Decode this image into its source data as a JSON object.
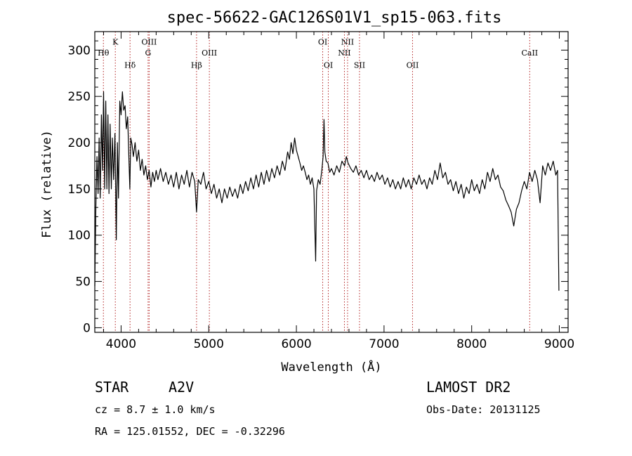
{
  "chart_data": {
    "type": "line",
    "title": "spec-56622-GAC126S01V1_sp15-063.fits",
    "xlabel": "Wavelength (Å)",
    "ylabel": "Flux (relative)",
    "xlim": [
      3700,
      9100
    ],
    "ylim": [
      -5,
      320
    ],
    "xticks": [
      4000,
      5000,
      6000,
      7000,
      8000,
      9000
    ],
    "yticks": [
      0,
      50,
      100,
      150,
      200,
      250,
      300
    ],
    "series": [
      {
        "values": [
          [
            3700,
            45
          ],
          [
            3712,
            130
          ],
          [
            3725,
            185
          ],
          [
            3738,
            145
          ],
          [
            3750,
            205
          ],
          [
            3762,
            140
          ],
          [
            3775,
            230
          ],
          [
            3788,
            170
          ],
          [
            3800,
            255
          ],
          [
            3812,
            150
          ],
          [
            3825,
            245
          ],
          [
            3838,
            150
          ],
          [
            3850,
            230
          ],
          [
            3862,
            145
          ],
          [
            3875,
            220
          ],
          [
            3888,
            150
          ],
          [
            3900,
            205
          ],
          [
            3915,
            160
          ],
          [
            3930,
            210
          ],
          [
            3945,
            95
          ],
          [
            3958,
            200
          ],
          [
            3970,
            140
          ],
          [
            3985,
            245
          ],
          [
            4000,
            230
          ],
          [
            4015,
            255
          ],
          [
            4030,
            235
          ],
          [
            4045,
            240
          ],
          [
            4060,
            215
          ],
          [
            4075,
            228
          ],
          [
            4090,
            180
          ],
          [
            4100,
            150
          ],
          [
            4110,
            205
          ],
          [
            4125,
            198
          ],
          [
            4140,
            185
          ],
          [
            4160,
            200
          ],
          [
            4180,
            180
          ],
          [
            4200,
            192
          ],
          [
            4220,
            170
          ],
          [
            4240,
            182
          ],
          [
            4260,
            165
          ],
          [
            4280,
            175
          ],
          [
            4300,
            160
          ],
          [
            4320,
            170
          ],
          [
            4340,
            152
          ],
          [
            4360,
            168
          ],
          [
            4380,
            158
          ],
          [
            4400,
            170
          ],
          [
            4420,
            160
          ],
          [
            4450,
            172
          ],
          [
            4480,
            158
          ],
          [
            4510,
            168
          ],
          [
            4540,
            155
          ],
          [
            4570,
            165
          ],
          [
            4600,
            152
          ],
          [
            4630,
            168
          ],
          [
            4660,
            150
          ],
          [
            4690,
            165
          ],
          [
            4720,
            155
          ],
          [
            4750,
            170
          ],
          [
            4780,
            152
          ],
          [
            4810,
            168
          ],
          [
            4840,
            158
          ],
          [
            4861,
            125
          ],
          [
            4880,
            160
          ],
          [
            4910,
            155
          ],
          [
            4940,
            168
          ],
          [
            4970,
            150
          ],
          [
            5000,
            158
          ],
          [
            5030,
            145
          ],
          [
            5060,
            155
          ],
          [
            5090,
            140
          ],
          [
            5120,
            150
          ],
          [
            5150,
            135
          ],
          [
            5180,
            150
          ],
          [
            5210,
            140
          ],
          [
            5240,
            152
          ],
          [
            5270,
            142
          ],
          [
            5300,
            150
          ],
          [
            5330,
            140
          ],
          [
            5360,
            155
          ],
          [
            5390,
            145
          ],
          [
            5420,
            158
          ],
          [
            5450,
            148
          ],
          [
            5480,
            162
          ],
          [
            5510,
            150
          ],
          [
            5540,
            165
          ],
          [
            5570,
            152
          ],
          [
            5600,
            168
          ],
          [
            5630,
            155
          ],
          [
            5660,
            170
          ],
          [
            5690,
            158
          ],
          [
            5720,
            172
          ],
          [
            5750,
            162
          ],
          [
            5780,
            175
          ],
          [
            5810,
            165
          ],
          [
            5840,
            180
          ],
          [
            5870,
            170
          ],
          [
            5900,
            190
          ],
          [
            5920,
            182
          ],
          [
            5940,
            200
          ],
          [
            5960,
            188
          ],
          [
            5980,
            205
          ],
          [
            6000,
            192
          ],
          [
            6020,
            185
          ],
          [
            6040,
            178
          ],
          [
            6060,
            170
          ],
          [
            6080,
            175
          ],
          [
            6100,
            168
          ],
          [
            6120,
            160
          ],
          [
            6140,
            165
          ],
          [
            6160,
            155
          ],
          [
            6180,
            162
          ],
          [
            6200,
            150
          ],
          [
            6220,
            72
          ],
          [
            6230,
            148
          ],
          [
            6250,
            160
          ],
          [
            6270,
            155
          ],
          [
            6290,
            170
          ],
          [
            6305,
            185
          ],
          [
            6315,
            225
          ],
          [
            6325,
            190
          ],
          [
            6340,
            180
          ],
          [
            6360,
            178
          ],
          [
            6380,
            168
          ],
          [
            6400,
            172
          ],
          [
            6430,
            165
          ],
          [
            6460,
            175
          ],
          [
            6490,
            168
          ],
          [
            6520,
            180
          ],
          [
            6550,
            175
          ],
          [
            6570,
            185
          ],
          [
            6590,
            178
          ],
          [
            6620,
            172
          ],
          [
            6650,
            168
          ],
          [
            6680,
            175
          ],
          [
            6710,
            165
          ],
          [
            6740,
            170
          ],
          [
            6770,
            162
          ],
          [
            6800,
            170
          ],
          [
            6830,
            160
          ],
          [
            6860,
            165
          ],
          [
            6890,
            158
          ],
          [
            6920,
            168
          ],
          [
            6950,
            160
          ],
          [
            6980,
            165
          ],
          [
            7010,
            155
          ],
          [
            7040,
            162
          ],
          [
            7070,
            152
          ],
          [
            7100,
            160
          ],
          [
            7130,
            150
          ],
          [
            7160,
            158
          ],
          [
            7190,
            150
          ],
          [
            7220,
            162
          ],
          [
            7250,
            152
          ],
          [
            7280,
            160
          ],
          [
            7310,
            150
          ],
          [
            7340,
            162
          ],
          [
            7370,
            155
          ],
          [
            7400,
            165
          ],
          [
            7430,
            155
          ],
          [
            7460,
            160
          ],
          [
            7490,
            150
          ],
          [
            7520,
            162
          ],
          [
            7550,
            155
          ],
          [
            7580,
            170
          ],
          [
            7610,
            160
          ],
          [
            7640,
            178
          ],
          [
            7670,
            162
          ],
          [
            7700,
            168
          ],
          [
            7730,
            155
          ],
          [
            7760,
            160
          ],
          [
            7790,
            148
          ],
          [
            7820,
            158
          ],
          [
            7850,
            145
          ],
          [
            7880,
            155
          ],
          [
            7910,
            140
          ],
          [
            7940,
            152
          ],
          [
            7970,
            145
          ],
          [
            8000,
            160
          ],
          [
            8030,
            148
          ],
          [
            8060,
            155
          ],
          [
            8090,
            145
          ],
          [
            8120,
            160
          ],
          [
            8150,
            150
          ],
          [
            8180,
            168
          ],
          [
            8210,
            158
          ],
          [
            8240,
            172
          ],
          [
            8270,
            160
          ],
          [
            8300,
            165
          ],
          [
            8330,
            152
          ],
          [
            8360,
            148
          ],
          [
            8390,
            138
          ],
          [
            8420,
            132
          ],
          [
            8450,
            125
          ],
          [
            8480,
            110
          ],
          [
            8510,
            128
          ],
          [
            8540,
            135
          ],
          [
            8570,
            148
          ],
          [
            8600,
            158
          ],
          [
            8630,
            150
          ],
          [
            8660,
            168
          ],
          [
            8690,
            158
          ],
          [
            8720,
            170
          ],
          [
            8750,
            160
          ],
          [
            8780,
            135
          ],
          [
            8810,
            175
          ],
          [
            8840,
            165
          ],
          [
            8870,
            178
          ],
          [
            8900,
            170
          ],
          [
            8930,
            180
          ],
          [
            8960,
            165
          ],
          [
            8980,
            170
          ],
          [
            8995,
            40
          ]
        ]
      }
    ],
    "spectral_lines": [
      {
        "label": "Hθ",
        "wavelength": 3798,
        "label_y": 294
      },
      {
        "label": "K",
        "wavelength": 3934,
        "label_y": 306
      },
      {
        "label": "Hδ",
        "wavelength": 4102,
        "label_y": 281
      },
      {
        "label": "OIII",
        "wavelength": 4320,
        "label_y": 306
      },
      {
        "label": "G",
        "wavelength": 4308,
        "label_y": 294
      },
      {
        "label": "Hβ",
        "wavelength": 4861,
        "label_y": 281
      },
      {
        "label": "OIII",
        "wavelength": 5007,
        "label_y": 294
      },
      {
        "label": "OI",
        "wavelength": 6300,
        "label_y": 306
      },
      {
        "label": "OI",
        "wavelength": 6364,
        "label_y": 281
      },
      {
        "label": "NII",
        "wavelength": 6584,
        "label_y": 306
      },
      {
        "label": "NII",
        "wavelength": 6548,
        "label_y": 294
      },
      {
        "label": "SII",
        "wavelength": 6720,
        "label_y": 281
      },
      {
        "label": "OII",
        "wavelength": 7325,
        "label_y": 281
      },
      {
        "label": "CaII",
        "wavelength": 8662,
        "label_y": 294
      }
    ],
    "grid": false,
    "line_color": "#000000",
    "marker_color": "#b22222"
  },
  "info": {
    "object_class": "STAR",
    "subclass": "A2V",
    "survey": "LAMOST DR2",
    "cz": "cz = 8.7 ± 1.0 km/s",
    "obs_date": "Obs-Date: 20131125",
    "coords": "RA = 125.01552, DEC =  -0.32296"
  }
}
